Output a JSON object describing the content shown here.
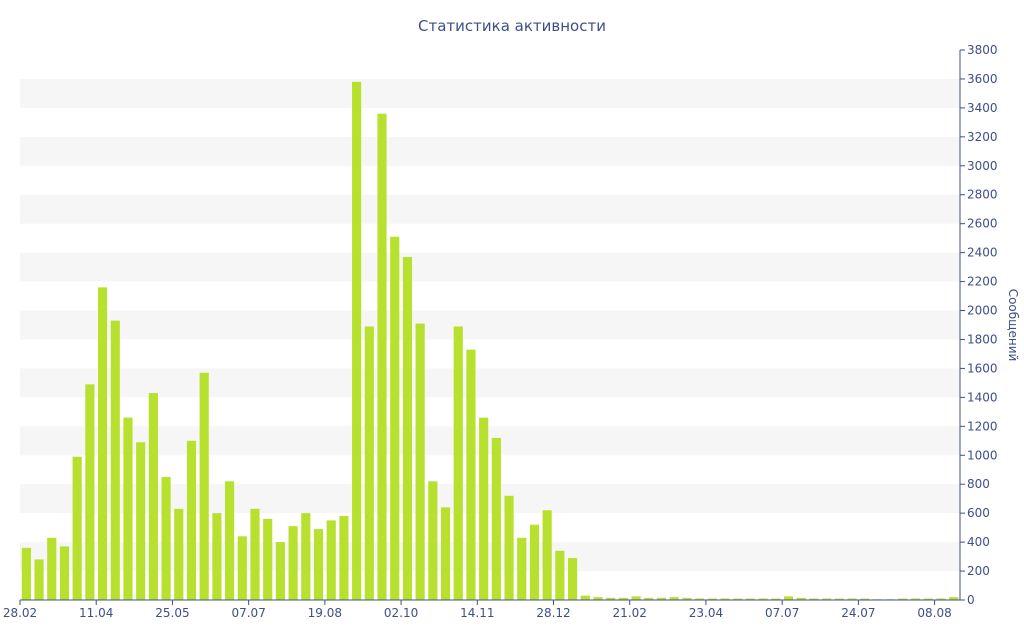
{
  "chart_data": {
    "type": "bar",
    "title": "Статистика активности",
    "xlabel": "",
    "ylabel": "Сообщений",
    "ylim": [
      0,
      3800
    ],
    "yticks": [
      0,
      200,
      400,
      600,
      800,
      1000,
      1200,
      1400,
      1600,
      1800,
      2000,
      2200,
      2400,
      2600,
      2800,
      3000,
      3200,
      3400,
      3600,
      3800
    ],
    "y_axis_side": "right",
    "grid": "alternating horizontal bands",
    "legend": "none",
    "bar_color": "#b8e02e",
    "band_color": "#f6f6f6",
    "text_color": "#3e4f88",
    "xtick_labels": [
      "28.02",
      "11.04",
      "25.05",
      "07.07",
      "19.08",
      "02.10",
      "14.11",
      "28.12",
      "21.02",
      "23.04",
      "07.07",
      "24.07",
      "08.08"
    ],
    "xtick_index": [
      0,
      6,
      12,
      18,
      24,
      30,
      36,
      42,
      48,
      54,
      60,
      66,
      72
    ],
    "values": [
      360,
      280,
      430,
      370,
      990,
      1490,
      2160,
      1930,
      1260,
      1090,
      1430,
      850,
      630,
      1100,
      1570,
      600,
      820,
      440,
      630,
      560,
      400,
      510,
      600,
      490,
      550,
      580,
      3580,
      1890,
      3360,
      2510,
      2370,
      1910,
      820,
      640,
      1890,
      1730,
      1260,
      1120,
      720,
      430,
      520,
      620,
      340,
      290,
      30,
      20,
      15,
      15,
      25,
      15,
      15,
      20,
      15,
      10,
      10,
      10,
      10,
      10,
      10,
      10,
      25,
      15,
      10,
      10,
      10,
      10,
      10,
      5,
      5,
      10,
      10,
      10,
      10,
      20
    ]
  }
}
